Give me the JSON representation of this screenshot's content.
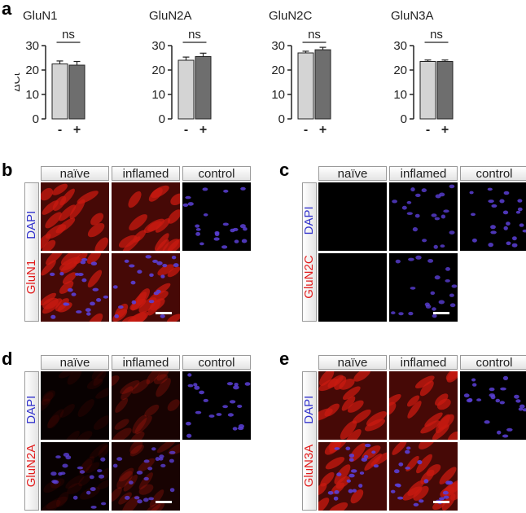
{
  "panels": {
    "a": "a",
    "b": "b",
    "c": "c",
    "d": "d",
    "e": "e"
  },
  "colors": {
    "naive_bar": "#d4d4d4",
    "stim_bar": "#6e6e6e",
    "glun_label": "#e21c1c",
    "dapi_label": "#3333cc",
    "nmda_stain": "#c81a10",
    "dapi_stain": "#5a3fd6"
  },
  "chart_data": [
    {
      "type": "bar",
      "title": "GluN1",
      "categories": [
        "-",
        "+"
      ],
      "values": [
        22.5,
        22.0
      ],
      "errors": [
        1.2,
        1.5
      ],
      "annotation": "ns",
      "ylabel": "ΔCt",
      "ylim": [
        0,
        35
      ],
      "yticks": [
        0,
        10,
        20,
        30
      ]
    },
    {
      "type": "bar",
      "title": "GluN2A",
      "categories": [
        "-",
        "+"
      ],
      "values": [
        24.0,
        25.5
      ],
      "errors": [
        1.3,
        1.4
      ],
      "annotation": "ns",
      "ylabel": "",
      "ylim": [
        0,
        35
      ],
      "yticks": [
        0,
        10,
        20,
        30
      ]
    },
    {
      "type": "bar",
      "title": "GluN2C",
      "categories": [
        "-",
        "+"
      ],
      "values": [
        27.0,
        28.3
      ],
      "errors": [
        0.7,
        1.0
      ],
      "annotation": "ns",
      "ylabel": "",
      "ylim": [
        0,
        35
      ],
      "yticks": [
        0,
        10,
        20,
        30
      ]
    },
    {
      "type": "bar",
      "title": "GluN3A",
      "categories": [
        "-",
        "+"
      ],
      "values": [
        23.5,
        23.5
      ],
      "errors": [
        0.6,
        0.6
      ],
      "annotation": "ns",
      "ylabel": "",
      "ylim": [
        0,
        35
      ],
      "yticks": [
        0,
        10,
        20,
        30
      ]
    }
  ],
  "micrographs": {
    "columns": [
      "naïve",
      "inflamed",
      "control"
    ],
    "dapi_label": "DAPI",
    "blocks": [
      {
        "panel": "b",
        "marker": "GluN1",
        "intensity": {
          "naive": "high",
          "inflamed": "high",
          "control": "none"
        }
      },
      {
        "panel": "c",
        "marker": "GluN2C",
        "intensity": {
          "naive": "none",
          "inflamed": "none",
          "control": "none"
        }
      },
      {
        "panel": "d",
        "marker": "GluN2A",
        "intensity": {
          "naive": "very-low",
          "inflamed": "low",
          "control": "none"
        }
      },
      {
        "panel": "e",
        "marker": "GluN3A",
        "intensity": {
          "naive": "high",
          "inflamed": "high",
          "control": "none"
        }
      }
    ]
  }
}
